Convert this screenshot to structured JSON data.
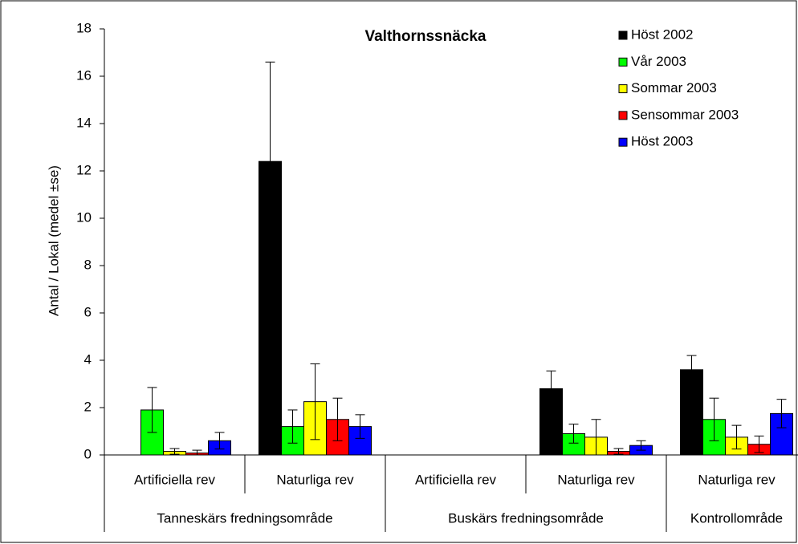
{
  "chart_data": {
    "type": "bar",
    "title": "Valthornssnäcka",
    "y_label": "Antal / Lokal (medel ±se)",
    "category_groups": [
      {
        "name": "Tanneskärs fredningsområde",
        "categories": [
          "Artificiella rev",
          "Naturliga rev"
        ]
      },
      {
        "name": "Buskärs fredningsområde",
        "categories": [
          "Artificiella rev",
          "Naturliga rev"
        ]
      },
      {
        "name": "Kontrollområde",
        "categories": [
          "Naturliga rev"
        ]
      }
    ],
    "series": [
      {
        "name": "Höst 2002",
        "color": "#000000",
        "values": [
          null,
          12.4,
          null,
          2.8,
          3.6
        ],
        "errors": [
          null,
          4.2,
          null,
          0.75,
          0.6
        ]
      },
      {
        "name": "Vår 2003",
        "color": "#00ff00",
        "values": [
          1.9,
          1.2,
          0,
          0.9,
          1.5
        ],
        "errors": [
          0.95,
          0.7,
          0,
          0.4,
          0.9
        ]
      },
      {
        "name": "Sommar 2003",
        "color": "#ffff00",
        "values": [
          0.15,
          2.25,
          0,
          0.75,
          0.75
        ],
        "errors": [
          0.12,
          1.6,
          0,
          0.75,
          0.5
        ]
      },
      {
        "name": "Sensommar 2003",
        "color": "#ff0000",
        "values": [
          0.08,
          1.5,
          0,
          0.15,
          0.45
        ],
        "errors": [
          0.12,
          0.9,
          0,
          0.12,
          0.35
        ]
      },
      {
        "name": "Höst 2003",
        "color": "#0000ff",
        "values": [
          0.6,
          1.2,
          0,
          0.4,
          1.75
        ],
        "errors": [
          0.35,
          0.5,
          0,
          0.2,
          0.6
        ]
      }
    ],
    "ylim": [
      0,
      18
    ],
    "yticks": [
      0,
      2,
      4,
      6,
      8,
      10,
      12,
      14,
      16,
      18
    ]
  }
}
